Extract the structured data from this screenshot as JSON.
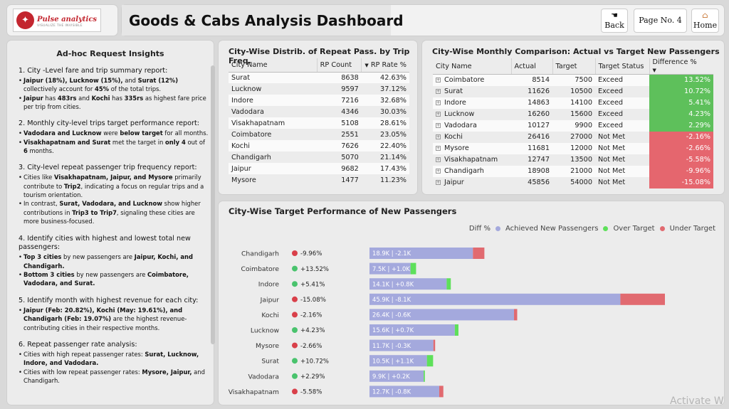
{
  "logo": {
    "brand": "Pulse analytics",
    "tagline": "VISUALIZE THE INVISIBLE"
  },
  "header": {
    "title": "Goods & Cabs Analysis Dashboard",
    "back_label": "Back",
    "page_label": "Page No. 4",
    "home_label": "Home"
  },
  "icons": {
    "back": "hand-back-icon",
    "home": "house-icon"
  },
  "insights": {
    "title": "Ad-hoc Request Insights",
    "s1_title": "1. City -Level fare and trip summary report:",
    "s2_title": "2. Monthly city-level trips target performance report:",
    "s3_title": "3. City-level repeat passenger trip frequency report:",
    "s4_title": "4. Identify cities with highest and lowest total new passengers:",
    "s5_title": "5. Identify month with highest revenue for each city:",
    "s6_title": "6. Repeat passenger rate analysis:"
  },
  "table1": {
    "title": "City-Wise Distrib. of Repeat Pass. by Trip Freq.",
    "headers": [
      "City Name",
      "RP Count",
      "RP Rate %"
    ],
    "rows": [
      [
        "Surat",
        "8638",
        "42.63%"
      ],
      [
        "Lucknow",
        "9597",
        "37.12%"
      ],
      [
        "Indore",
        "7216",
        "32.68%"
      ],
      [
        "Vadodara",
        "4346",
        "30.03%"
      ],
      [
        "Visakhapatnam",
        "5108",
        "28.61%"
      ],
      [
        "Coimbatore",
        "2551",
        "23.05%"
      ],
      [
        "Kochi",
        "7626",
        "22.40%"
      ],
      [
        "Chandigarh",
        "5070",
        "21.14%"
      ],
      [
        "Jaipur",
        "9682",
        "17.43%"
      ],
      [
        "Mysore",
        "1477",
        "11.23%"
      ]
    ]
  },
  "table2": {
    "title": "City-Wise Monthly Comparison: Actual vs Target New Passengers",
    "headers": [
      "City Name",
      "Actual",
      "Target",
      "Target Status",
      "Difference %"
    ],
    "rows": [
      [
        "Coimbatore",
        "8514",
        "7500",
        "Exceed",
        "13.52%"
      ],
      [
        "Surat",
        "11626",
        "10500",
        "Exceed",
        "10.72%"
      ],
      [
        "Indore",
        "14863",
        "14100",
        "Exceed",
        "5.41%"
      ],
      [
        "Lucknow",
        "16260",
        "15600",
        "Exceed",
        "4.23%"
      ],
      [
        "Vadodara",
        "10127",
        "9900",
        "Exceed",
        "2.29%"
      ],
      [
        "Kochi",
        "26416",
        "27000",
        "Not Met",
        "-2.16%"
      ],
      [
        "Mysore",
        "11681",
        "12000",
        "Not Met",
        "-2.66%"
      ],
      [
        "Visakhapatnam",
        "12747",
        "13500",
        "Not Met",
        "-5.58%"
      ],
      [
        "Chandigarh",
        "18908",
        "21000",
        "Not Met",
        "-9.96%"
      ],
      [
        "Jaipur",
        "45856",
        "54000",
        "Not Met",
        "-15.08%"
      ]
    ]
  },
  "chart_data": {
    "type": "bar",
    "title": "City-Wise Target Performance of New Passengers",
    "legend": [
      "Diff %",
      "Achieved New Passengers",
      "Over Target",
      "Under Target"
    ],
    "colors": {
      "achieved": "#a4a9dd",
      "over": "#5ee05a",
      "under": "#e16a70"
    },
    "categories": [
      "Chandigarh",
      "Coimbatore",
      "Indore",
      "Jaipur",
      "Kochi",
      "Lucknow",
      "Mysore",
      "Surat",
      "Vadodara",
      "Visakhapatnam"
    ],
    "diff_pct": [
      "-9.96%",
      "+13.52%",
      "+5.41%",
      "-15.08%",
      "-2.16%",
      "+4.23%",
      "-2.66%",
      "+10.72%",
      "+2.29%",
      "-5.58%"
    ],
    "bar_labels": [
      "18.9K | -2.1K",
      "7.5K | +1.0K",
      "14.1K | +0.8K",
      "45.9K | -8.1K",
      "26.4K | -0.6K",
      "15.6K | +0.7K",
      "11.7K | -0.3K",
      "10.5K | +1.1K",
      "9.9K | +0.2K",
      "12.7K | -0.8K"
    ],
    "achieved": [
      18908,
      8514,
      14863,
      45856,
      26416,
      16260,
      11681,
      11626,
      10127,
      12747
    ],
    "target": [
      21000,
      7500,
      14100,
      54000,
      27000,
      15600,
      12000,
      10500,
      9900,
      13500
    ],
    "xlim": [
      0,
      54000
    ]
  },
  "watermark": "Activate W"
}
